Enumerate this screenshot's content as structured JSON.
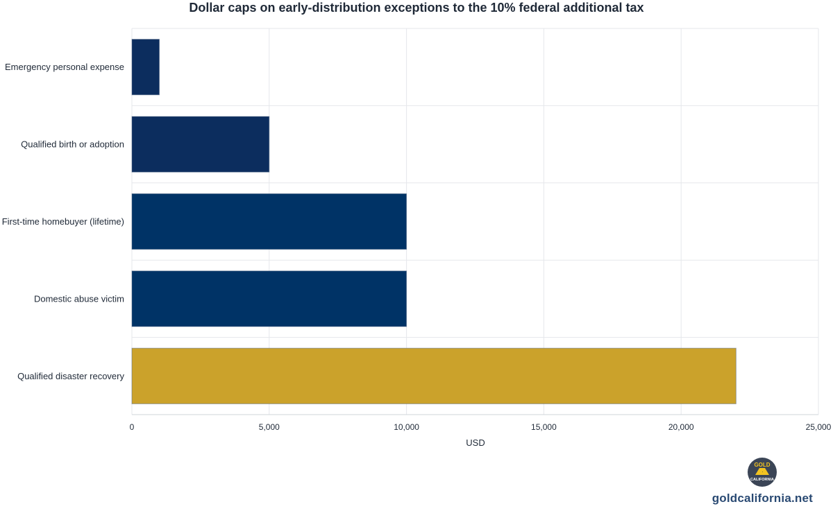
{
  "chart_data": {
    "type": "bar",
    "orientation": "horizontal",
    "title": "Dollar caps on early-distribution exceptions to the 10% federal additional tax",
    "xlabel": "USD",
    "ylabel": "",
    "xlim": [
      0,
      25000
    ],
    "x_ticks": [
      0,
      5000,
      10000,
      15000,
      20000,
      25000
    ],
    "x_tick_labels": [
      "0",
      "5,000",
      "10,000",
      "15,000",
      "20,000",
      "25,000"
    ],
    "grid": true,
    "categories": [
      "Emergency personal expense",
      "Qualified birth or adoption",
      "First-time homebuyer (lifetime)",
      "Domestic abuse victim",
      "Qualified disaster recovery"
    ],
    "values": [
      1000,
      5000,
      10000,
      10000,
      22000
    ],
    "colors": [
      "#0c2d5e",
      "#0c2d5e",
      "#003366",
      "#003366",
      "#cba22b"
    ]
  },
  "branding": {
    "site": "goldcalifornia.net",
    "logo_icon": "gold-california-logo-icon",
    "logo_top_text": "GOLD",
    "logo_bottom_text": "CALIFORNIA",
    "logo_bg": "#3b4556",
    "logo_accent": "#f2c320"
  }
}
